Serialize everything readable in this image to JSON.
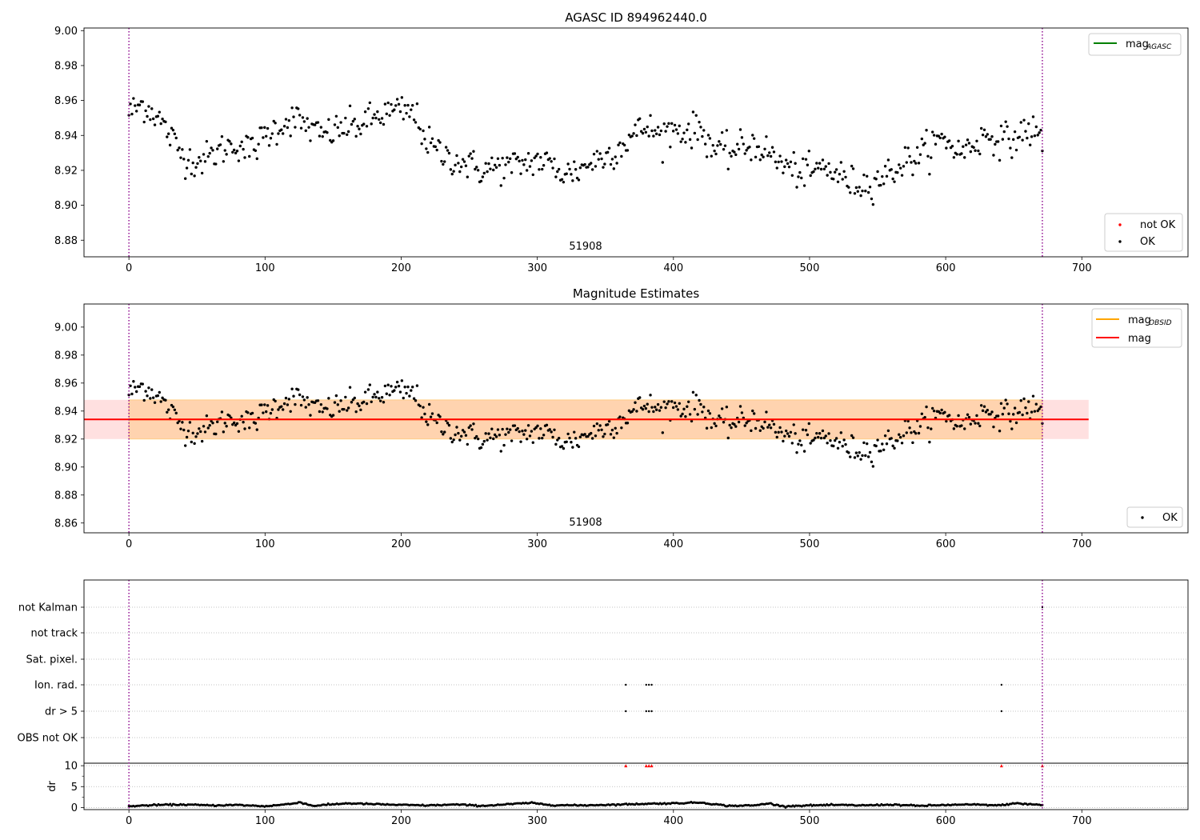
{
  "chart_data": [
    {
      "type": "scatter",
      "title": "AGASC ID 894962440.0",
      "annotation": "51908",
      "xlim": [
        -33,
        778
      ],
      "ylim": [
        8.8705,
        9.0015
      ],
      "xticks": [
        0,
        100,
        200,
        300,
        400,
        500,
        600,
        700
      ],
      "xtick_labels": [
        "0",
        "100",
        "200",
        "300",
        "400",
        "500",
        "600",
        "700"
      ],
      "yticks": [
        8.88,
        8.9,
        8.92,
        8.94,
        8.96,
        8.98,
        9.0
      ],
      "ytick_labels": [
        "8.88",
        "8.90",
        "8.92",
        "8.94",
        "8.96",
        "8.98",
        "9.00"
      ],
      "vlines": [
        0,
        671
      ],
      "legend_lines": [
        {
          "label": "mag",
          "sub": "AGASC",
          "color": "#008000"
        }
      ],
      "legend_points": [
        {
          "label": "not OK",
          "color": "#ff0000"
        },
        {
          "label": "OK",
          "color": "#000000"
        }
      ],
      "series": [
        {
          "name": "OK",
          "color": "#000000",
          "trend": [
            [
              0,
              8.953
            ],
            [
              10,
              8.958
            ],
            [
              20,
              8.952
            ],
            [
              30,
              8.94
            ],
            [
              40,
              8.928
            ],
            [
              50,
              8.925
            ],
            [
              60,
              8.928
            ],
            [
              70,
              8.933
            ],
            [
              80,
              8.935
            ],
            [
              90,
              8.931
            ],
            [
              100,
              8.94
            ],
            [
              110,
              8.945
            ],
            [
              120,
              8.95
            ],
            [
              130,
              8.946
            ],
            [
              140,
              8.94
            ],
            [
              150,
              8.942
            ],
            [
              160,
              8.945
            ],
            [
              170,
              8.946
            ],
            [
              180,
              8.95
            ],
            [
              190,
              8.953
            ],
            [
              200,
              8.954
            ],
            [
              210,
              8.952
            ],
            [
              220,
              8.935
            ],
            [
              230,
              8.929
            ],
            [
              240,
              8.926
            ],
            [
              250,
              8.923
            ],
            [
              260,
              8.92
            ],
            [
              270,
              8.922
            ],
            [
              280,
              8.922
            ],
            [
              290,
              8.924
            ],
            [
              300,
              8.926
            ],
            [
              310,
              8.923
            ],
            [
              320,
              8.918
            ],
            [
              330,
              8.92
            ],
            [
              340,
              8.925
            ],
            [
              350,
              8.928
            ],
            [
              360,
              8.933
            ],
            [
              370,
              8.94
            ],
            [
              380,
              8.945
            ],
            [
              390,
              8.94
            ],
            [
              400,
              8.944
            ],
            [
              410,
              8.942
            ],
            [
              420,
              8.944
            ],
            [
              430,
              8.932
            ],
            [
              440,
              8.93
            ],
            [
              450,
              8.933
            ],
            [
              460,
              8.935
            ],
            [
              470,
              8.93
            ],
            [
              480,
              8.923
            ],
            [
              490,
              8.92
            ],
            [
              500,
              8.918
            ],
            [
              510,
              8.922
            ],
            [
              520,
              8.918
            ],
            [
              530,
              8.913
            ],
            [
              540,
              8.912
            ],
            [
              550,
              8.915
            ],
            [
              560,
              8.919
            ],
            [
              570,
              8.925
            ],
            [
              580,
              8.928
            ],
            [
              590,
              8.935
            ],
            [
              600,
              8.938
            ],
            [
              610,
              8.93
            ],
            [
              620,
              8.935
            ],
            [
              630,
              8.94
            ],
            [
              640,
              8.938
            ],
            [
              650,
              8.937
            ],
            [
              660,
              8.944
            ],
            [
              671,
              8.938
            ]
          ],
          "noise": 0.0085,
          "n": 600,
          "x_range": [
            0,
            671
          ]
        }
      ]
    },
    {
      "type": "scatter",
      "title": "Magnitude Estimates",
      "annotation": "51908",
      "xlim": [
        -33,
        778
      ],
      "ylim": [
        8.853,
        9.0165
      ],
      "xticks": [
        0,
        100,
        200,
        300,
        400,
        500,
        600,
        700
      ],
      "xtick_labels": [
        "0",
        "100",
        "200",
        "300",
        "400",
        "500",
        "600",
        "700"
      ],
      "yticks": [
        8.86,
        8.88,
        8.9,
        8.92,
        8.94,
        8.96,
        8.98,
        9.0
      ],
      "ytick_labels": [
        "8.86",
        "8.88",
        "8.90",
        "8.92",
        "8.94",
        "8.96",
        "8.98",
        "9.00"
      ],
      "vlines": [
        0,
        671
      ],
      "mag_obsid": 8.934,
      "mag": 8.934,
      "band": [
        8.92,
        8.948
      ],
      "band_x_range": [
        -33,
        705
      ],
      "band_obsid_x_range": [
        0,
        671
      ],
      "legend_lines": [
        {
          "label": "mag",
          "sub": "OBSID",
          "color": "#ffa500"
        },
        {
          "label": "mag",
          "sub": "",
          "color": "#ff0000"
        }
      ],
      "legend_points": [
        {
          "label": "OK",
          "color": "#000000"
        }
      ]
    },
    {
      "type": "scatter",
      "title": "",
      "xlim": [
        -33,
        778
      ],
      "flag_categories": [
        "OBS not OK",
        "dr > 5",
        "Ion. rad.",
        "Sat. pixel.",
        "not track",
        "not Kalman"
      ],
      "flag_points": {
        "dr > 5": [
          365,
          380,
          382,
          384,
          641
        ],
        "Ion. rad.": [
          365,
          380,
          382,
          384,
          641
        ],
        "not Kalman": [
          671
        ]
      },
      "dr_ylim": [
        -0.5,
        10.6
      ],
      "dr_yticks": [
        0,
        5,
        10
      ],
      "dr_ytick_labels": [
        "0",
        "5",
        "10"
      ],
      "dr_ylabel": "dr",
      "dr_clipped_points": [
        365,
        380,
        382,
        384,
        641,
        671
      ],
      "xticks": [
        0,
        100,
        200,
        300,
        400,
        500,
        600,
        700
      ],
      "xtick_labels": [
        "0",
        "100",
        "200",
        "300",
        "400",
        "500",
        "600",
        "700"
      ],
      "vlines": [
        0,
        671
      ],
      "dr_trend": [
        [
          0,
          0.3
        ],
        [
          20,
          0.6
        ],
        [
          40,
          0.7
        ],
        [
          60,
          0.5
        ],
        [
          80,
          0.6
        ],
        [
          100,
          0.3
        ],
        [
          120,
          0.9
        ],
        [
          125,
          1.3
        ],
        [
          135,
          0.4
        ],
        [
          160,
          1.0
        ],
        [
          180,
          0.8
        ],
        [
          200,
          0.6
        ],
        [
          220,
          0.5
        ],
        [
          240,
          0.7
        ],
        [
          260,
          0.4
        ],
        [
          280,
          0.8
        ],
        [
          295,
          1.1
        ],
        [
          310,
          0.6
        ],
        [
          330,
          0.5
        ],
        [
          360,
          0.7
        ],
        [
          380,
          0.9
        ],
        [
          400,
          1.0
        ],
        [
          420,
          1.2
        ],
        [
          440,
          0.4
        ],
        [
          460,
          0.5
        ],
        [
          470,
          1.0
        ],
        [
          480,
          0.3
        ],
        [
          500,
          0.5
        ],
        [
          520,
          0.6
        ],
        [
          540,
          0.5
        ],
        [
          560,
          0.7
        ],
        [
          580,
          0.4
        ],
        [
          600,
          0.6
        ],
        [
          620,
          0.7
        ],
        [
          640,
          0.5
        ],
        [
          650,
          1.0
        ],
        [
          671,
          0.6
        ]
      ]
    }
  ]
}
